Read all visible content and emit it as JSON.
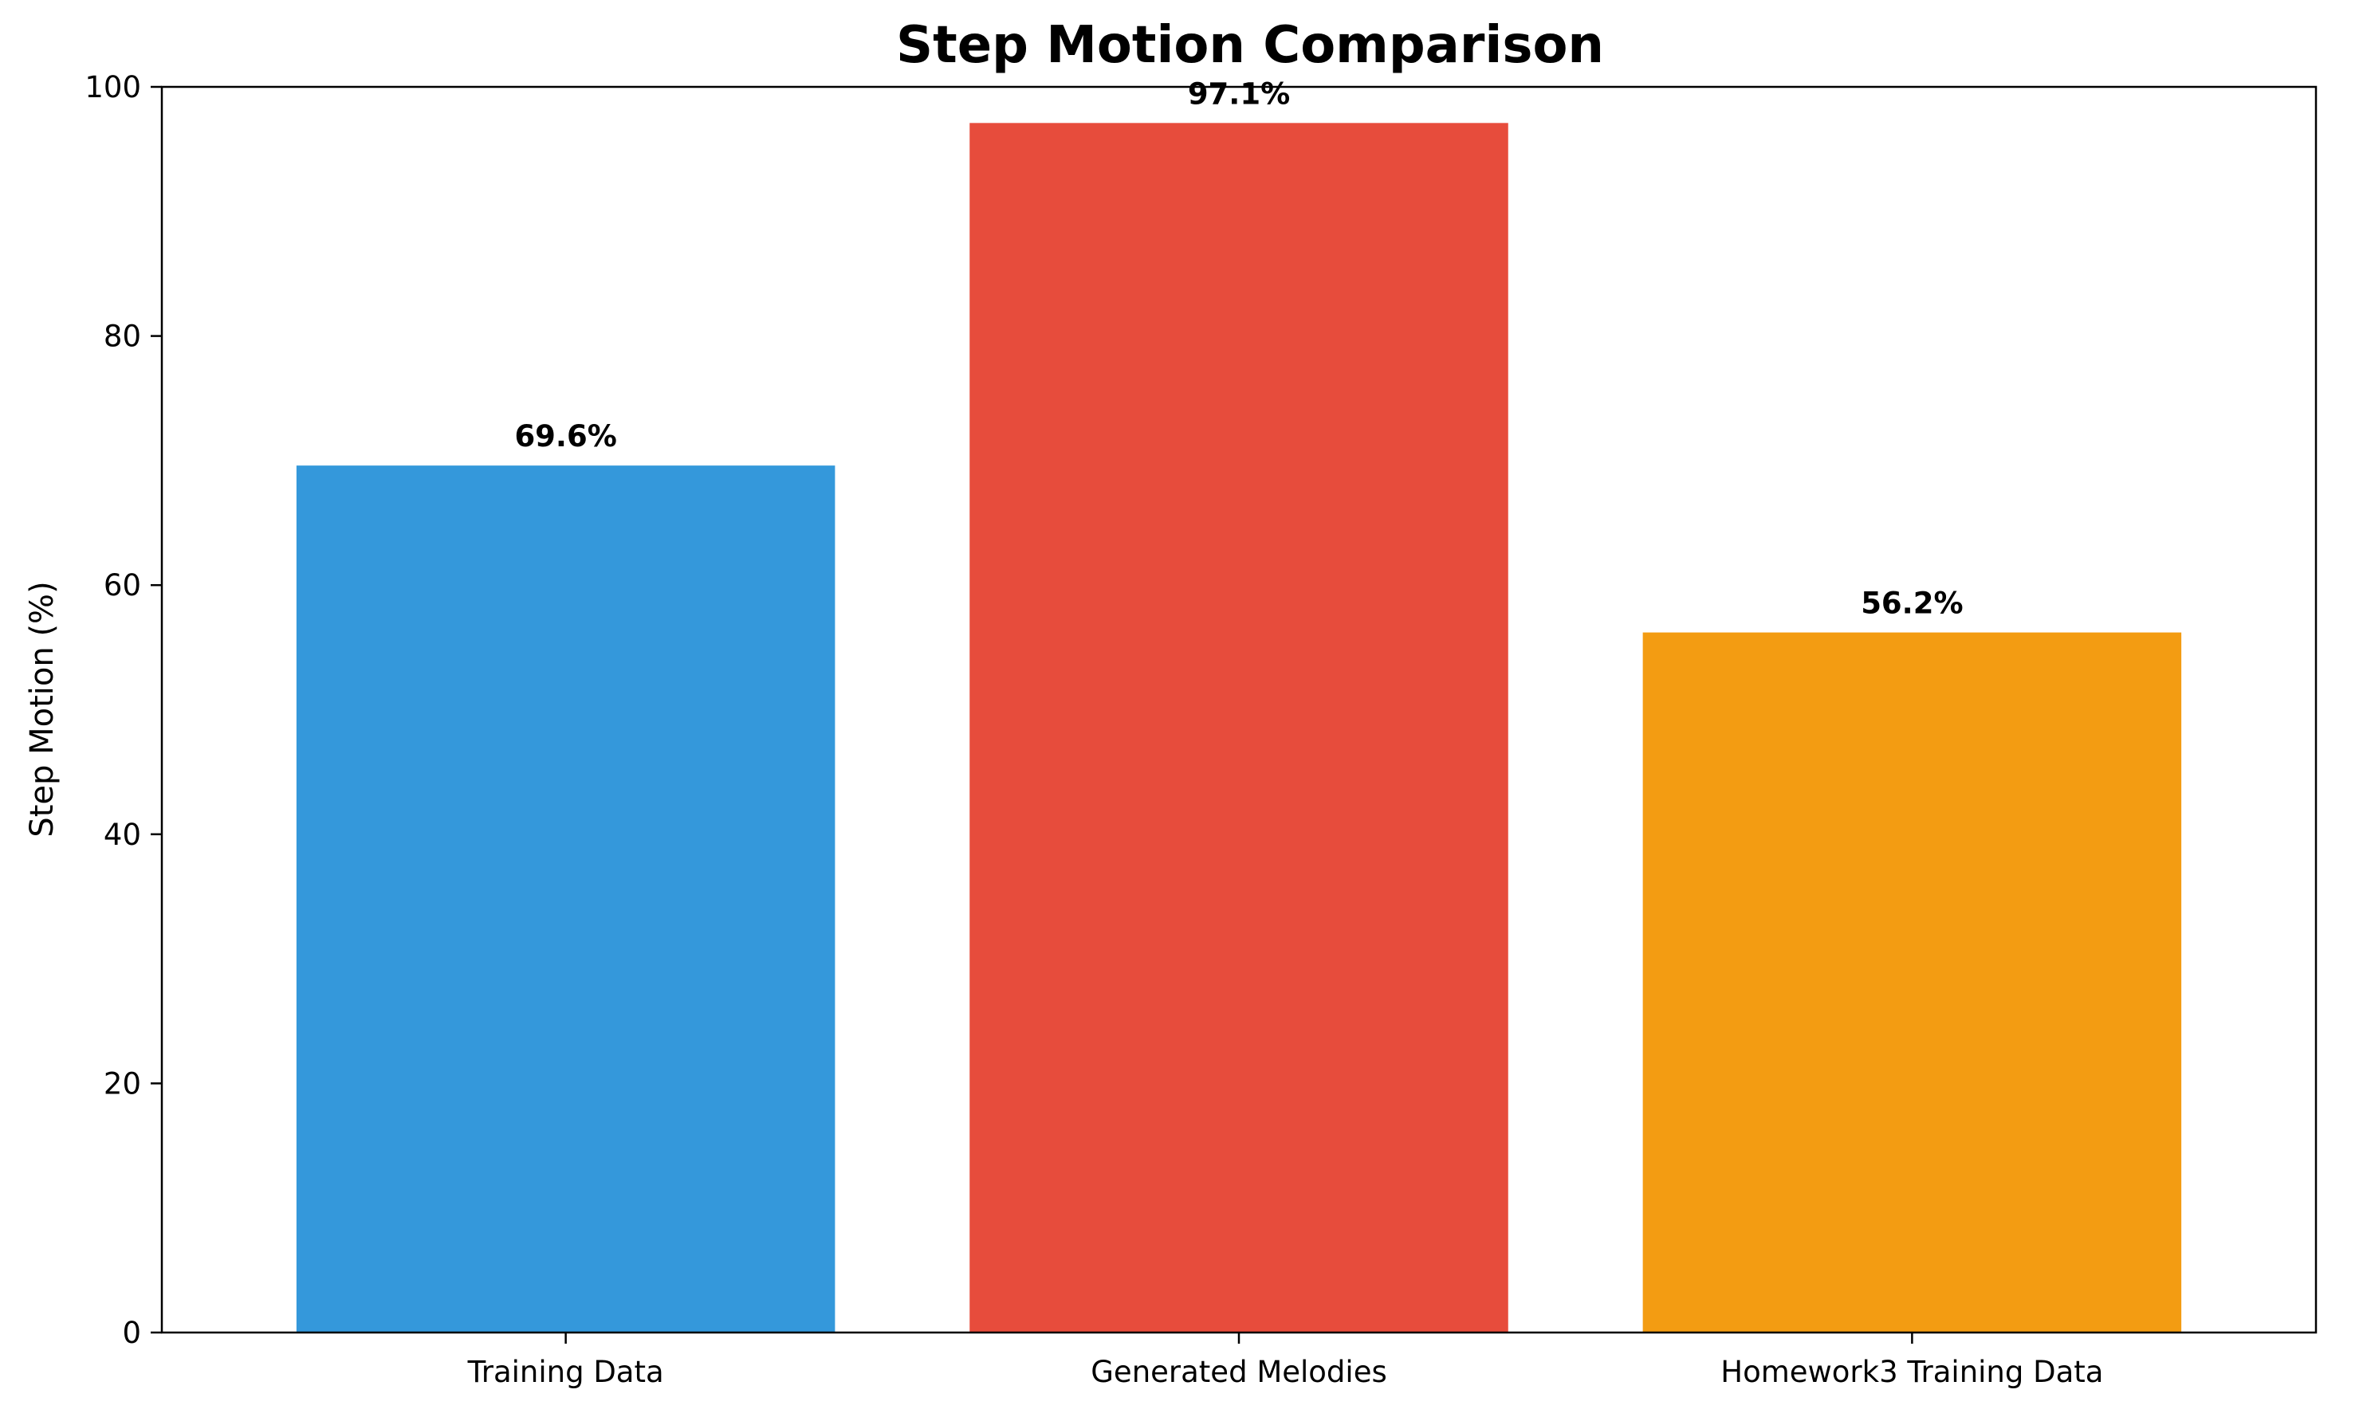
{
  "chart_data": {
    "type": "bar",
    "title": "Step Motion Comparison",
    "xlabel": "",
    "ylabel": "Step Motion (%)",
    "ylim": [
      0,
      100
    ],
    "yticks": [
      0,
      20,
      40,
      60,
      80,
      100
    ],
    "categories": [
      "Training Data",
      "Generated Melodies",
      "Homework3 Training Data"
    ],
    "values": [
      69.6,
      97.1,
      56.2
    ],
    "value_labels": [
      "69.6%",
      "97.1%",
      "56.2%"
    ],
    "colors": [
      "#3498db",
      "#e74c3c",
      "#f39c12"
    ],
    "grid": false,
    "legend": "none"
  }
}
